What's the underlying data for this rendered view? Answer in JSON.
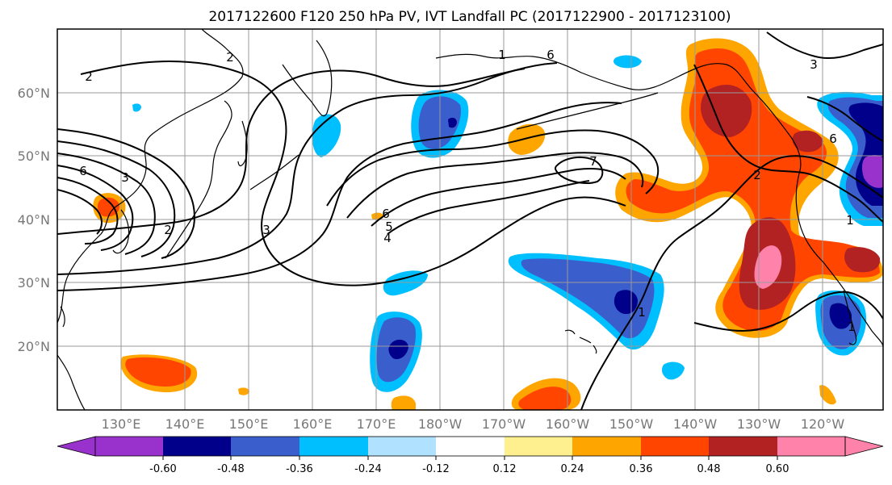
{
  "title": "2017122600 F120 250 hPa PV, IVT Landfall PC (2017122900 - 2017123100)",
  "lat_labels": [
    "60°N",
    "50°N",
    "40°N",
    "30°N",
    "20°N"
  ],
  "lon_labels": [
    "130°E",
    "140°E",
    "150°E",
    "160°E",
    "170°E",
    "180°W",
    "170°W",
    "160°W",
    "150°W",
    "140°W",
    "130°W",
    "120°W"
  ],
  "colorbar": {
    "colors": [
      "#9932cc",
      "#00008b",
      "#3a5fcd",
      "#00bfff",
      "#b0e2ff",
      "#ffffff",
      "#fff08f",
      "#ffa500",
      "#ff4500",
      "#b22222",
      "#ff82ab"
    ],
    "tick_labels": [
      "-0.60",
      "-0.48",
      "-0.36",
      "-0.24",
      "-0.12",
      "0.12",
      "0.24",
      "0.36",
      "0.48",
      "0.60"
    ]
  },
  "contour_labels": [
    "2",
    "6",
    "3",
    "2",
    "3",
    "6",
    "5",
    "4",
    "7",
    "1",
    "2",
    "6",
    "1",
    "1",
    "6",
    "1",
    "3",
    "2"
  ],
  "colors": {
    "grid": "#999999",
    "coast": "#000000",
    "contour": "#000000"
  }
}
